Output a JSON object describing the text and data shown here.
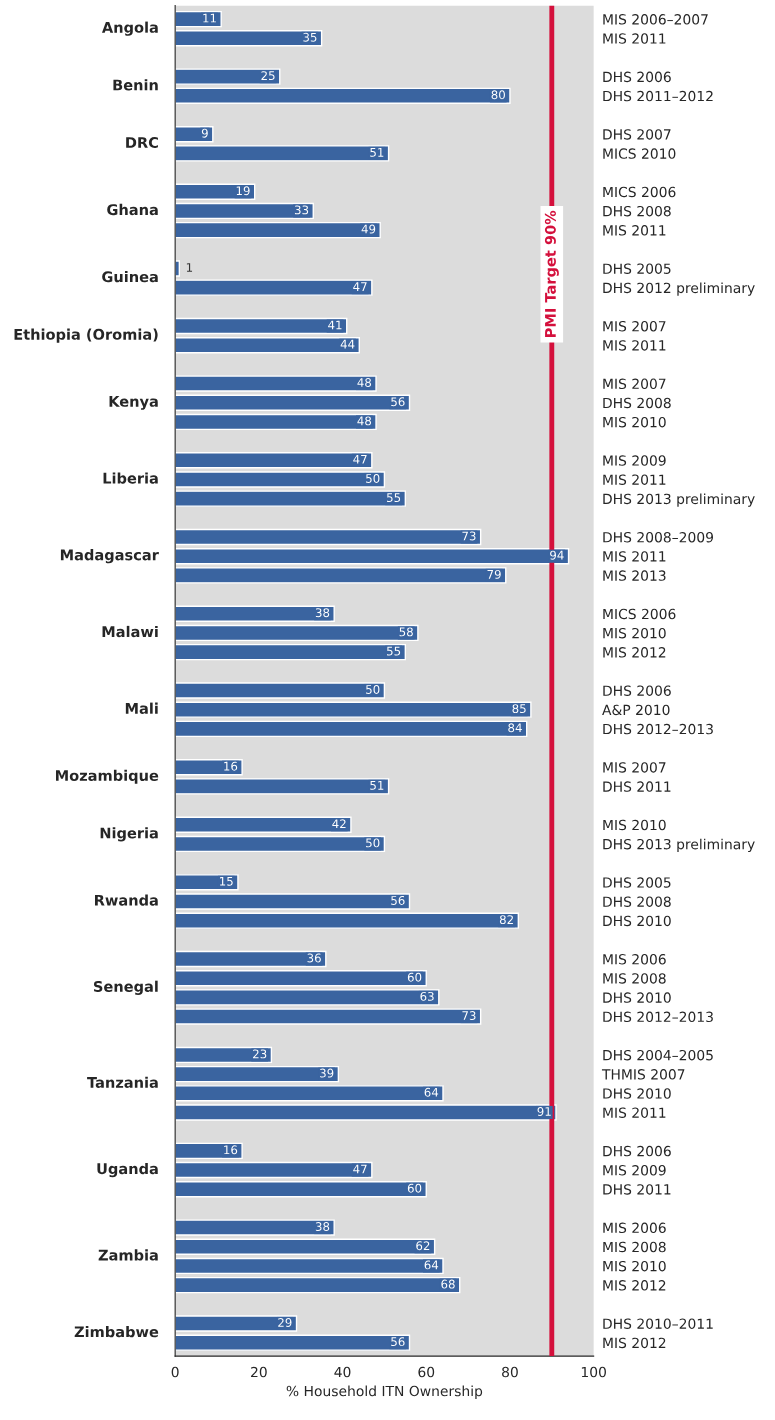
{
  "chart_data": {
    "type": "bar",
    "orientation": "horizontal",
    "xlabel": "% Household ITN Ownership",
    "categories": [
      "MIS 2006–2007",
      "MIS 2011",
      null,
      "DHS 2006",
      "DHS 2011–2012",
      null,
      "DHS 2007",
      "MICS 2010",
      null,
      "MICS 2006",
      "DHS 2008",
      "MIS 2011",
      null,
      "DHS 2005",
      "DHS 2012 preliminary",
      null,
      "MIS 2007",
      "MIS 2011",
      null,
      "MIS 2007",
      "DHS 2008",
      "MIS 2010",
      null,
      "MIS 2009",
      "MIS 2011",
      "DHS 2013 preliminary",
      null,
      "DHS 2008–2009",
      "MIS 2011",
      "MIS 2013",
      null,
      "MICS 2006",
      "MIS 2010",
      "MIS 2012",
      null,
      "DHS 2006",
      "A&P 2010",
      "DHS 2012–2013",
      null,
      "MIS 2007",
      "DHS 2011",
      null,
      "MIS 2010",
      "DHS 2013 preliminary",
      null,
      "DHS 2005",
      "DHS 2008",
      "DHS 2010",
      null,
      "MIS 2006",
      "MIS 2008",
      "DHS 2010",
      "DHS 2012–2013",
      null,
      "DHS 2004–2005",
      "THMIS 2007",
      "DHS 2010",
      "MIS 2011",
      null,
      "DHS 2006",
      "MIS 2009",
      "DHS 2011",
      null,
      "MIS 2006",
      "MIS 2008",
      "MIS 2010",
      "MIS 2012",
      null,
      "DHS 2010–2011",
      "MIS 2012"
    ],
    "values": [
      11,
      35,
      null,
      25,
      80,
      null,
      9,
      51,
      null,
      19,
      33,
      49,
      null,
      1,
      47,
      null,
      41,
      44,
      null,
      48,
      56,
      48,
      null,
      47,
      50,
      55,
      null,
      73,
      94,
      79,
      null,
      38,
      58,
      55,
      null,
      50,
      85,
      84,
      null,
      16,
      51,
      null,
      42,
      50,
      null,
      15,
      56,
      82,
      null,
      36,
      60,
      63,
      73,
      null,
      23,
      39,
      64,
      91,
      null,
      16,
      47,
      60,
      null,
      38,
      62,
      64,
      68,
      null,
      29,
      56
    ],
    "color": "#3a64a0",
    "annotations": [
      "Angola",
      "Benin",
      "DRC",
      "Ghana",
      "Guinea",
      "Ethiopia (Oromia)",
      "Kenya",
      "Liberia",
      "Madagascar",
      "Malawi",
      "Mali",
      "Mozambique",
      "Nigeria",
      "Rwanda",
      "Senegal",
      "Tanzania",
      "Uganda",
      "Zambia",
      "Zimbabwe"
    ],
    "xlim": [
      0,
      100
    ],
    "xticks": [
      0,
      20,
      40,
      60,
      80,
      100
    ],
    "ref_lines": [
      {
        "axis": "x",
        "value": 90,
        "label": "PMI Target 90%",
        "color": "#d4103c"
      }
    ],
    "data_labels": true,
    "grid": false,
    "legend": false
  }
}
